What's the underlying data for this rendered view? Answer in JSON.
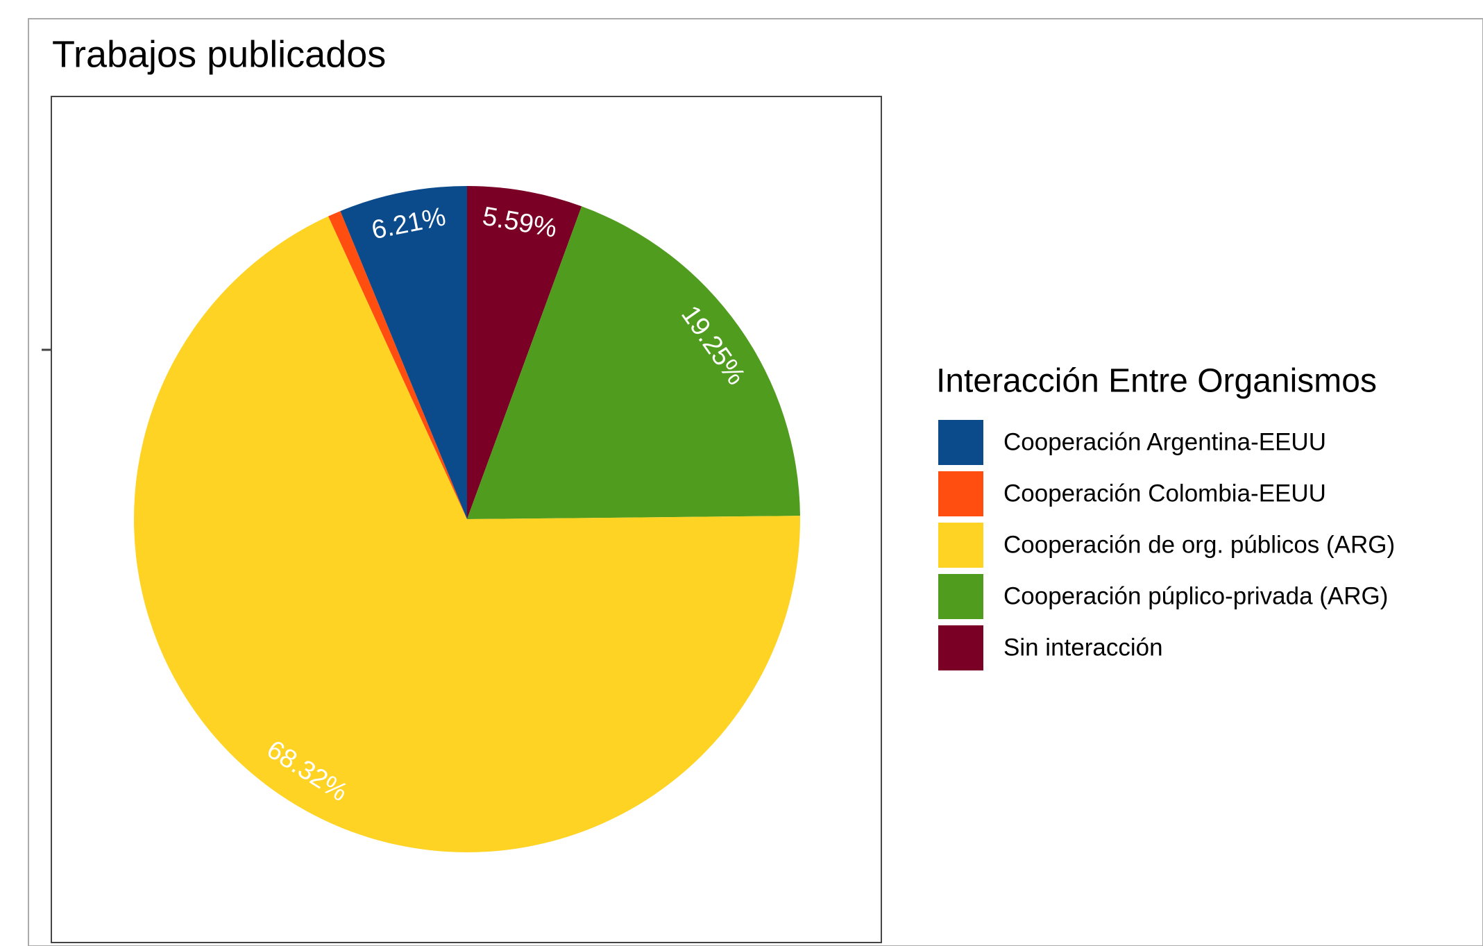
{
  "chart_data": {
    "type": "pie",
    "title": "Trabajos publicados",
    "legend_title": "Interacción Entre Organismos",
    "categories": [
      "Cooperación Argentina-EEUU",
      "Cooperación Colombia-EEUU",
      "Cooperación de org. públicos (ARG)",
      "Cooperación púplico-privada (ARG)",
      "Sin interacción"
    ],
    "values": [
      6.21,
      0.63,
      68.32,
      19.25,
      5.59
    ],
    "value_labels": [
      "6.21%",
      null,
      "68.32%",
      "19.25%",
      "5.59%"
    ],
    "colors": [
      "#0b4a8b",
      "#ff4e0f",
      "#fed324",
      "#4f9c1f",
      "#7a0026"
    ],
    "legend": "right"
  }
}
